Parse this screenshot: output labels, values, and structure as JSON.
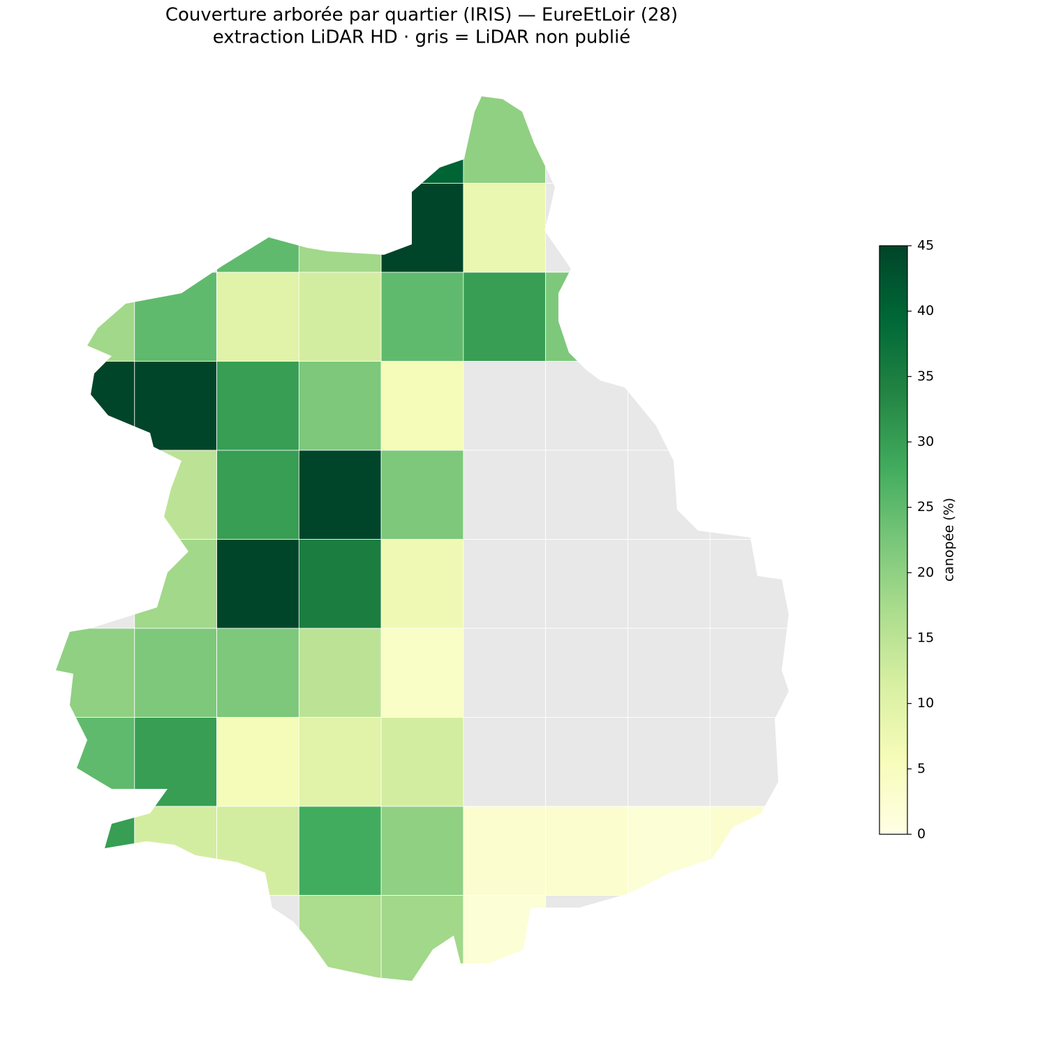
{
  "chart_data": {
    "type": "choropleth",
    "title": "Couverture arborée par quartier (IRIS) — EureEtLoir (28)",
    "subtitle": "extraction LiDAR HD · gris = LiDAR non publié",
    "colorbar_label": "canopée (%)",
    "clim": [
      0,
      45
    ],
    "cticks": [
      0,
      5,
      10,
      15,
      20,
      25,
      30,
      35,
      40,
      45
    ],
    "colormap": [
      "#ffffe5",
      "#f7fcb9",
      "#d9f0a3",
      "#addd8e",
      "#78c679",
      "#41ab5d",
      "#238443",
      "#006837",
      "#004529"
    ],
    "missing_color": "#e8e8e8",
    "values": [
      [
        null,
        null,
        null,
        null,
        40,
        20,
        null,
        null,
        null
      ],
      [
        null,
        null,
        25,
        18,
        45,
        8,
        null,
        null,
        null
      ],
      [
        18,
        25,
        10,
        12,
        25,
        30,
        22,
        null,
        null
      ],
      [
        45,
        45,
        30,
        22,
        6,
        null,
        null,
        null,
        null
      ],
      [
        null,
        15,
        30,
        45,
        22,
        null,
        null,
        null,
        null
      ],
      [
        null,
        18,
        45,
        35,
        7,
        null,
        null,
        null,
        null
      ],
      [
        20,
        22,
        22,
        15,
        4,
        null,
        null,
        null,
        null
      ],
      [
        25,
        30,
        6,
        10,
        12,
        null,
        null,
        null,
        null
      ],
      [
        30,
        12,
        12,
        28,
        20,
        3,
        3,
        2,
        3
      ],
      [
        null,
        null,
        null,
        17,
        18,
        2,
        null,
        null,
        null
      ]
    ]
  }
}
